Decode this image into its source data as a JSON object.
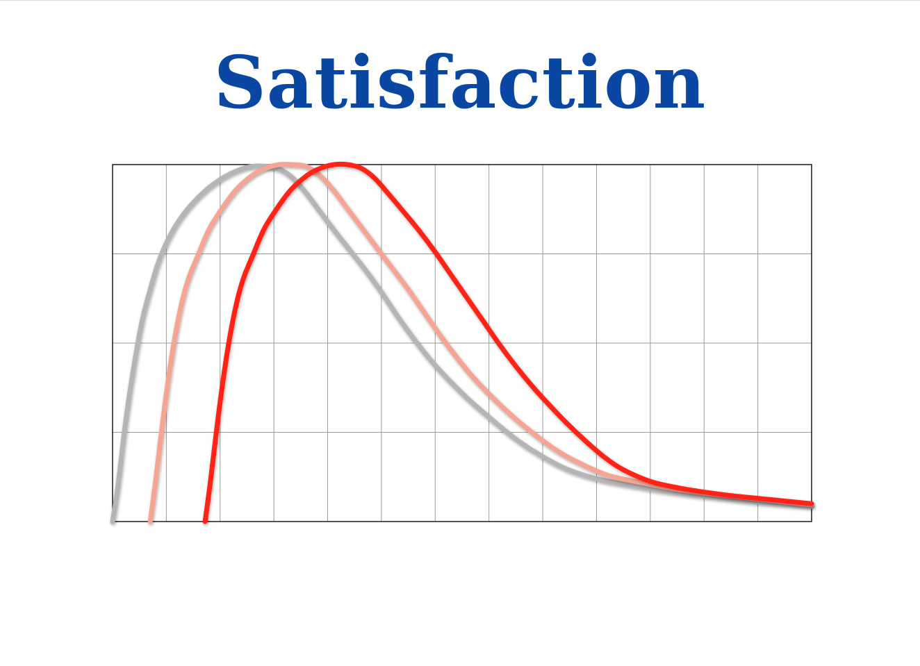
{
  "colors": {
    "title": "#0a47a2",
    "grid": "#9a9a9a",
    "frame": "#1a1a1a"
  },
  "chart_data": {
    "type": "line",
    "title": "Satisfaction",
    "xlabel": "",
    "ylabel": "",
    "xlim": [
      0,
      13
    ],
    "ylim": [
      0,
      4
    ],
    "grid": true,
    "legend": "none",
    "series": [
      {
        "color": "#b5b5b5",
        "x": [
          0,
          0.1,
          0.25,
          0.4,
          0.55,
          0.7,
          0.85,
          1.0,
          1.2,
          1.45,
          1.75,
          2.05,
          2.35,
          2.6,
          2.85,
          3.1,
          3.35,
          3.6,
          3.85,
          4.1,
          4.4,
          4.7,
          5.0,
          5.3,
          5.6,
          5.9,
          6.2,
          6.6,
          7.0,
          7.4,
          7.8,
          8.4,
          9.0,
          9.6,
          10.2,
          10.8,
          11.4,
          12.0,
          12.6,
          13.0
        ],
        "y": [
          0.0,
          0.4,
          1.15,
          1.75,
          2.25,
          2.6,
          2.9,
          3.12,
          3.34,
          3.54,
          3.72,
          3.85,
          3.94,
          3.98,
          3.98,
          3.95,
          3.85,
          3.68,
          3.48,
          3.28,
          3.05,
          2.82,
          2.57,
          2.3,
          2.05,
          1.82,
          1.62,
          1.38,
          1.17,
          0.97,
          0.8,
          0.6,
          0.48,
          0.41,
          0.35,
          0.3,
          0.26,
          0.22,
          0.19,
          0.17
        ]
      },
      {
        "color": "#f4a594",
        "x": [
          0.7,
          0.8,
          0.95,
          1.1,
          1.25,
          1.4,
          1.6,
          1.8,
          2.05,
          2.3,
          2.6,
          2.85,
          3.1,
          3.35,
          3.6,
          3.85,
          4.1,
          4.35,
          4.6,
          4.9,
          5.2,
          5.5,
          5.8,
          6.1,
          6.4,
          6.7,
          7.0,
          7.4,
          7.8,
          8.2,
          8.6,
          9.2,
          9.8,
          10.4,
          11.0,
          11.6,
          12.2,
          12.8,
          13.0
        ],
        "y": [
          0.0,
          0.45,
          1.2,
          1.85,
          2.35,
          2.7,
          3.0,
          3.28,
          3.52,
          3.72,
          3.88,
          3.96,
          4.0,
          4.0,
          3.98,
          3.88,
          3.72,
          3.52,
          3.32,
          3.08,
          2.84,
          2.6,
          2.34,
          2.08,
          1.84,
          1.62,
          1.43,
          1.2,
          1.0,
          0.82,
          0.68,
          0.52,
          0.44,
          0.37,
          0.32,
          0.28,
          0.24,
          0.2,
          0.19
        ]
      },
      {
        "color": "#ff2419",
        "x": [
          1.72,
          1.82,
          1.97,
          2.12,
          2.27,
          2.42,
          2.62,
          2.82,
          3.07,
          3.32,
          3.62,
          3.87,
          4.12,
          4.37,
          4.62,
          4.87,
          5.12,
          5.4,
          5.7,
          6.0,
          6.3,
          6.6,
          6.9,
          7.2,
          7.5,
          7.8,
          8.1,
          8.45,
          8.8,
          9.15,
          9.5,
          10.0,
          10.5,
          11.0,
          11.5,
          12.0,
          12.5,
          13.0
        ],
        "y": [
          0.0,
          0.45,
          1.2,
          1.85,
          2.35,
          2.7,
          3.0,
          3.28,
          3.52,
          3.72,
          3.88,
          3.96,
          4.0,
          4.0,
          3.96,
          3.85,
          3.68,
          3.48,
          3.26,
          3.02,
          2.76,
          2.5,
          2.24,
          1.98,
          1.74,
          1.52,
          1.32,
          1.1,
          0.9,
          0.72,
          0.58,
          0.45,
          0.38,
          0.33,
          0.29,
          0.26,
          0.23,
          0.2
        ]
      }
    ]
  }
}
